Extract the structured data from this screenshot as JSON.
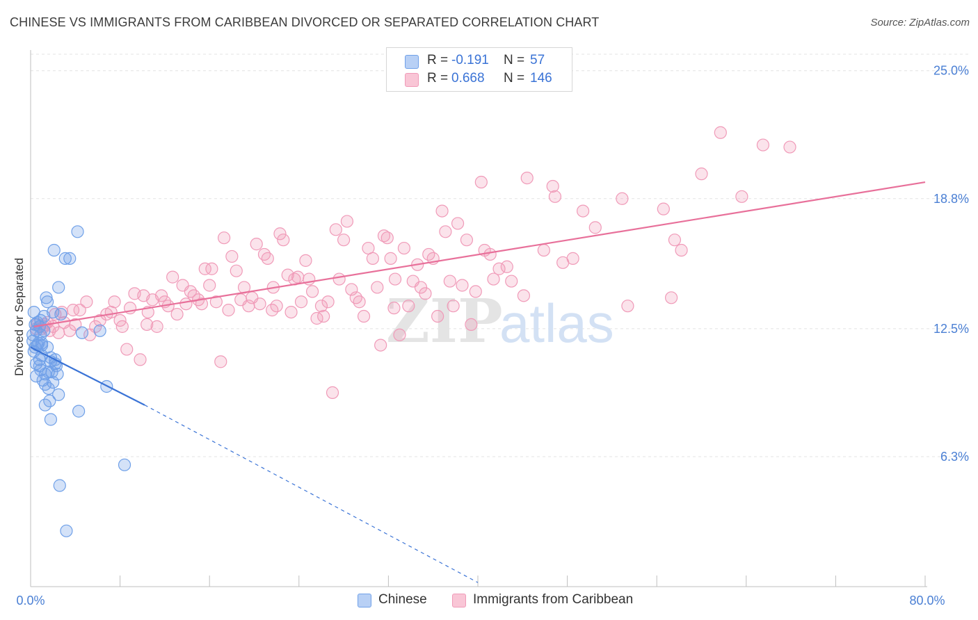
{
  "title": "CHINESE VS IMMIGRANTS FROM CARIBBEAN DIVORCED OR SEPARATED CORRELATION CHART",
  "source": "Source: ZipAtlas.com",
  "watermark": {
    "zip": "ZIP",
    "atlas": "atlas"
  },
  "legend": {
    "rows": [
      {
        "r_label": "R =",
        "r_value": "-0.191",
        "n_label": "N =",
        "n_value": "57"
      },
      {
        "r_label": "R =",
        "r_value": "0.668",
        "n_label": "N =",
        "n_value": "146"
      }
    ]
  },
  "bottom_legend": {
    "series1": "Chinese",
    "series2": "Immigrants from Caribbean"
  },
  "chart_data": {
    "type": "scatter",
    "title": "CHINESE VS IMMIGRANTS FROM CARIBBEAN DIVORCED OR SEPARATED CORRELATION CHART",
    "xlabel": "",
    "ylabel": "Divorced or Separated",
    "xlim": [
      0,
      80
    ],
    "ylim": [
      0,
      26
    ],
    "x_tick_labels": [
      "0.0%",
      "80.0%"
    ],
    "y_ticks": [
      6.3,
      12.5,
      18.8,
      25.0
    ],
    "y_tick_labels": [
      "6.3%",
      "12.5%",
      "18.8%",
      "25.0%"
    ],
    "grid": "horizontal dashed",
    "legend_position": "top-center",
    "colors": {
      "chinese": "#6fa0e8",
      "caribbean": "#f09ab8",
      "chinese_line": "#3a73d6",
      "caribbean_line": "#e8709a"
    },
    "series": [
      {
        "name": "Chinese",
        "r": -0.191,
        "n": 57,
        "trend": {
          "x": [
            0,
            10.2
          ],
          "y": [
            11.6,
            8.8
          ],
          "dashed_to": [
            40,
            0.2
          ]
        },
        "points": [
          [
            0.2,
            11.9
          ],
          [
            0.2,
            12.2
          ],
          [
            0.3,
            13.3
          ],
          [
            0.4,
            11.6
          ],
          [
            0.4,
            12.7
          ],
          [
            0.5,
            10.8
          ],
          [
            0.5,
            10.2
          ],
          [
            0.6,
            12.8
          ],
          [
            0.6,
            11.7
          ],
          [
            0.7,
            11.8
          ],
          [
            0.8,
            12.6
          ],
          [
            0.8,
            11.0
          ],
          [
            0.8,
            10.7
          ],
          [
            0.9,
            12.9
          ],
          [
            0.9,
            10.5
          ],
          [
            1.0,
            11.8
          ],
          [
            1.0,
            11.2
          ],
          [
            1.1,
            10.0
          ],
          [
            1.2,
            12.4
          ],
          [
            1.2,
            13.1
          ],
          [
            1.3,
            10.3
          ],
          [
            1.3,
            9.8
          ],
          [
            1.3,
            8.8
          ],
          [
            1.4,
            14.0
          ],
          [
            1.5,
            13.8
          ],
          [
            1.5,
            11.6
          ],
          [
            1.6,
            10.4
          ],
          [
            1.6,
            9.6
          ],
          [
            1.7,
            9.0
          ],
          [
            1.8,
            11.1
          ],
          [
            1.8,
            8.1
          ],
          [
            1.9,
            10.4
          ],
          [
            2.0,
            9.9
          ],
          [
            2.0,
            13.3
          ],
          [
            2.1,
            16.3
          ],
          [
            2.2,
            10.8
          ],
          [
            2.2,
            11.0
          ],
          [
            2.3,
            10.7
          ],
          [
            2.4,
            10.3
          ],
          [
            2.5,
            14.5
          ],
          [
            2.5,
            9.3
          ],
          [
            2.6,
            4.9
          ],
          [
            2.7,
            13.2
          ],
          [
            3.1,
            15.9
          ],
          [
            3.2,
            2.7
          ],
          [
            3.5,
            15.9
          ],
          [
            4.2,
            17.2
          ],
          [
            4.3,
            8.5
          ],
          [
            4.6,
            12.3
          ],
          [
            6.2,
            12.4
          ],
          [
            6.8,
            9.7
          ],
          [
            8.4,
            5.9
          ],
          [
            0.5,
            12.4
          ],
          [
            0.9,
            12.2
          ],
          [
            1.0,
            11.7
          ],
          [
            0.3,
            11.4
          ],
          [
            1.8,
            10.9
          ]
        ]
      },
      {
        "name": "Immigrants from Caribbean",
        "r": 0.668,
        "n": 146,
        "trend": {
          "x": [
            0.3,
            80
          ],
          "y": [
            12.6,
            19.6
          ]
        },
        "points": [
          [
            0.5,
            12.5
          ],
          [
            0.6,
            12.7
          ],
          [
            0.8,
            12.6
          ],
          [
            1.0,
            12.5
          ],
          [
            1.2,
            12.6
          ],
          [
            1.3,
            12.7
          ],
          [
            1.5,
            12.8
          ],
          [
            1.7,
            12.4
          ],
          [
            2.0,
            12.6
          ],
          [
            2.2,
            13.2
          ],
          [
            2.5,
            12.3
          ],
          [
            2.8,
            13.3
          ],
          [
            3.0,
            12.8
          ],
          [
            3.5,
            12.4
          ],
          [
            4.0,
            12.7
          ],
          [
            4.4,
            13.4
          ],
          [
            5.0,
            13.8
          ],
          [
            5.3,
            12.2
          ],
          [
            5.8,
            12.6
          ],
          [
            6.2,
            12.9
          ],
          [
            6.8,
            13.2
          ],
          [
            7.2,
            13.3
          ],
          [
            7.5,
            13.8
          ],
          [
            8.0,
            12.9
          ],
          [
            8.2,
            12.6
          ],
          [
            8.6,
            11.5
          ],
          [
            8.9,
            13.5
          ],
          [
            9.3,
            14.2
          ],
          [
            9.8,
            11.0
          ],
          [
            10.1,
            14.1
          ],
          [
            10.5,
            13.3
          ],
          [
            10.9,
            13.9
          ],
          [
            11.3,
            12.6
          ],
          [
            11.7,
            14.1
          ],
          [
            12.0,
            13.8
          ],
          [
            12.3,
            13.6
          ],
          [
            12.7,
            15.0
          ],
          [
            13.1,
            13.2
          ],
          [
            13.6,
            14.6
          ],
          [
            13.9,
            13.7
          ],
          [
            14.3,
            14.3
          ],
          [
            14.6,
            14.1
          ],
          [
            15.0,
            13.9
          ],
          [
            15.3,
            13.7
          ],
          [
            15.6,
            15.4
          ],
          [
            16.0,
            14.6
          ],
          [
            16.2,
            15.4
          ],
          [
            16.6,
            13.8
          ],
          [
            17.0,
            10.9
          ],
          [
            17.3,
            16.9
          ],
          [
            17.7,
            13.4
          ],
          [
            18.0,
            16.0
          ],
          [
            18.4,
            15.3
          ],
          [
            18.8,
            13.9
          ],
          [
            19.1,
            14.5
          ],
          [
            19.5,
            13.6
          ],
          [
            19.8,
            14.0
          ],
          [
            20.2,
            16.6
          ],
          [
            20.5,
            13.7
          ],
          [
            20.9,
            16.1
          ],
          [
            21.2,
            15.9
          ],
          [
            21.6,
            13.4
          ],
          [
            22.0,
            13.6
          ],
          [
            22.3,
            17.1
          ],
          [
            22.6,
            16.8
          ],
          [
            23.0,
            15.1
          ],
          [
            23.3,
            13.3
          ],
          [
            23.6,
            14.9
          ],
          [
            23.9,
            15.0
          ],
          [
            24.2,
            13.8
          ],
          [
            24.6,
            15.8
          ],
          [
            24.9,
            14.9
          ],
          [
            25.2,
            14.3
          ],
          [
            25.6,
            13.0
          ],
          [
            26.0,
            13.6
          ],
          [
            26.2,
            13.1
          ],
          [
            26.6,
            13.8
          ],
          [
            27.0,
            9.4
          ],
          [
            27.3,
            17.3
          ],
          [
            27.6,
            14.9
          ],
          [
            28.0,
            16.8
          ],
          [
            28.3,
            17.7
          ],
          [
            28.7,
            14.4
          ],
          [
            29.1,
            14.0
          ],
          [
            29.4,
            13.8
          ],
          [
            29.8,
            13.1
          ],
          [
            30.2,
            16.4
          ],
          [
            30.6,
            15.9
          ],
          [
            31.0,
            14.5
          ],
          [
            31.3,
            11.7
          ],
          [
            31.6,
            17.0
          ],
          [
            31.9,
            16.9
          ],
          [
            32.2,
            15.9
          ],
          [
            32.6,
            14.9
          ],
          [
            33.0,
            12.2
          ],
          [
            33.4,
            16.4
          ],
          [
            33.8,
            13.6
          ],
          [
            34.2,
            14.8
          ],
          [
            34.6,
            15.6
          ],
          [
            34.9,
            14.5
          ],
          [
            35.3,
            14.2
          ],
          [
            35.6,
            16.1
          ],
          [
            36.0,
            15.9
          ],
          [
            36.4,
            13.1
          ],
          [
            36.8,
            18.2
          ],
          [
            37.1,
            17.2
          ],
          [
            37.5,
            14.8
          ],
          [
            37.8,
            13.6
          ],
          [
            38.2,
            17.6
          ],
          [
            38.6,
            14.6
          ],
          [
            39.0,
            16.8
          ],
          [
            39.4,
            12.7
          ],
          [
            39.8,
            14.3
          ],
          [
            40.3,
            19.6
          ],
          [
            40.6,
            16.3
          ],
          [
            41.1,
            16.1
          ],
          [
            41.4,
            14.9
          ],
          [
            41.9,
            15.4
          ],
          [
            42.6,
            15.5
          ],
          [
            43.0,
            14.8
          ],
          [
            44.4,
            19.8
          ],
          [
            45.9,
            16.3
          ],
          [
            46.7,
            19.4
          ],
          [
            46.9,
            18.9
          ],
          [
            47.6,
            15.7
          ],
          [
            48.5,
            15.9
          ],
          [
            49.4,
            18.2
          ],
          [
            50.5,
            17.4
          ],
          [
            52.9,
            18.8
          ],
          [
            56.6,
            18.3
          ],
          [
            57.3,
            14.0
          ],
          [
            57.6,
            16.8
          ],
          [
            58.2,
            16.3
          ],
          [
            60.0,
            20.0
          ],
          [
            61.7,
            22.0
          ],
          [
            63.6,
            18.9
          ],
          [
            65.5,
            21.4
          ],
          [
            67.9,
            21.3
          ],
          [
            10.4,
            12.7
          ],
          [
            21.7,
            14.5
          ],
          [
            32.5,
            13.5
          ],
          [
            44.1,
            14.1
          ],
          [
            53.4,
            13.6
          ],
          [
            3.8,
            13.4
          ]
        ]
      }
    ]
  }
}
